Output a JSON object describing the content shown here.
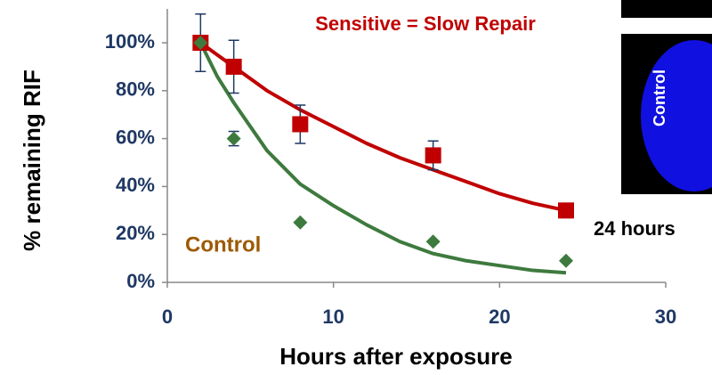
{
  "chart_data": {
    "type": "scatter",
    "xlabel": "Hours after exposure",
    "ylabel": "% remaining RIF",
    "xlim": [
      0,
      30
    ],
    "xticks": [
      0,
      10,
      20,
      30
    ],
    "ylim": [
      0,
      100
    ],
    "yticks": [
      {
        "value": 0,
        "label": "0%"
      },
      {
        "value": 20,
        "label": "20%"
      },
      {
        "value": 40,
        "label": "40%"
      },
      {
        "value": 60,
        "label": "60%"
      },
      {
        "value": 80,
        "label": "80%"
      },
      {
        "value": 100,
        "label": "100%"
      }
    ],
    "series": [
      {
        "name": "Sensitive = Slow Repair",
        "color": "#c00000",
        "marker": "square",
        "x": [
          2,
          4,
          8,
          16,
          24
        ],
        "values": [
          100,
          90,
          66,
          53,
          30
        ],
        "errors": [
          12,
          11,
          8,
          6,
          3
        ],
        "fit": {
          "x": [
            2,
            3,
            4,
            6,
            8,
            10,
            12,
            14,
            16,
            18,
            20,
            22,
            24
          ],
          "values": [
            100,
            95,
            90,
            80,
            72,
            65,
            58,
            52,
            47,
            42,
            37,
            33,
            30
          ]
        }
      },
      {
        "name": "Control",
        "color": "#3e7a3e",
        "label_color": "#9c5a00",
        "marker": "diamond",
        "x": [
          2,
          4,
          8,
          16,
          24
        ],
        "values": [
          100,
          60,
          25,
          17,
          9
        ],
        "errors": [
          null,
          3,
          null,
          null,
          null
        ],
        "fit": {
          "x": [
            2,
            3,
            4,
            6,
            8,
            10,
            12,
            14,
            16,
            18,
            20,
            22,
            24
          ],
          "values": [
            100,
            86,
            75,
            55,
            41,
            32,
            24,
            17,
            12,
            9,
            7,
            5,
            4
          ]
        }
      }
    ],
    "image_panel": {
      "label": "Control",
      "caption": "24 hours"
    }
  }
}
